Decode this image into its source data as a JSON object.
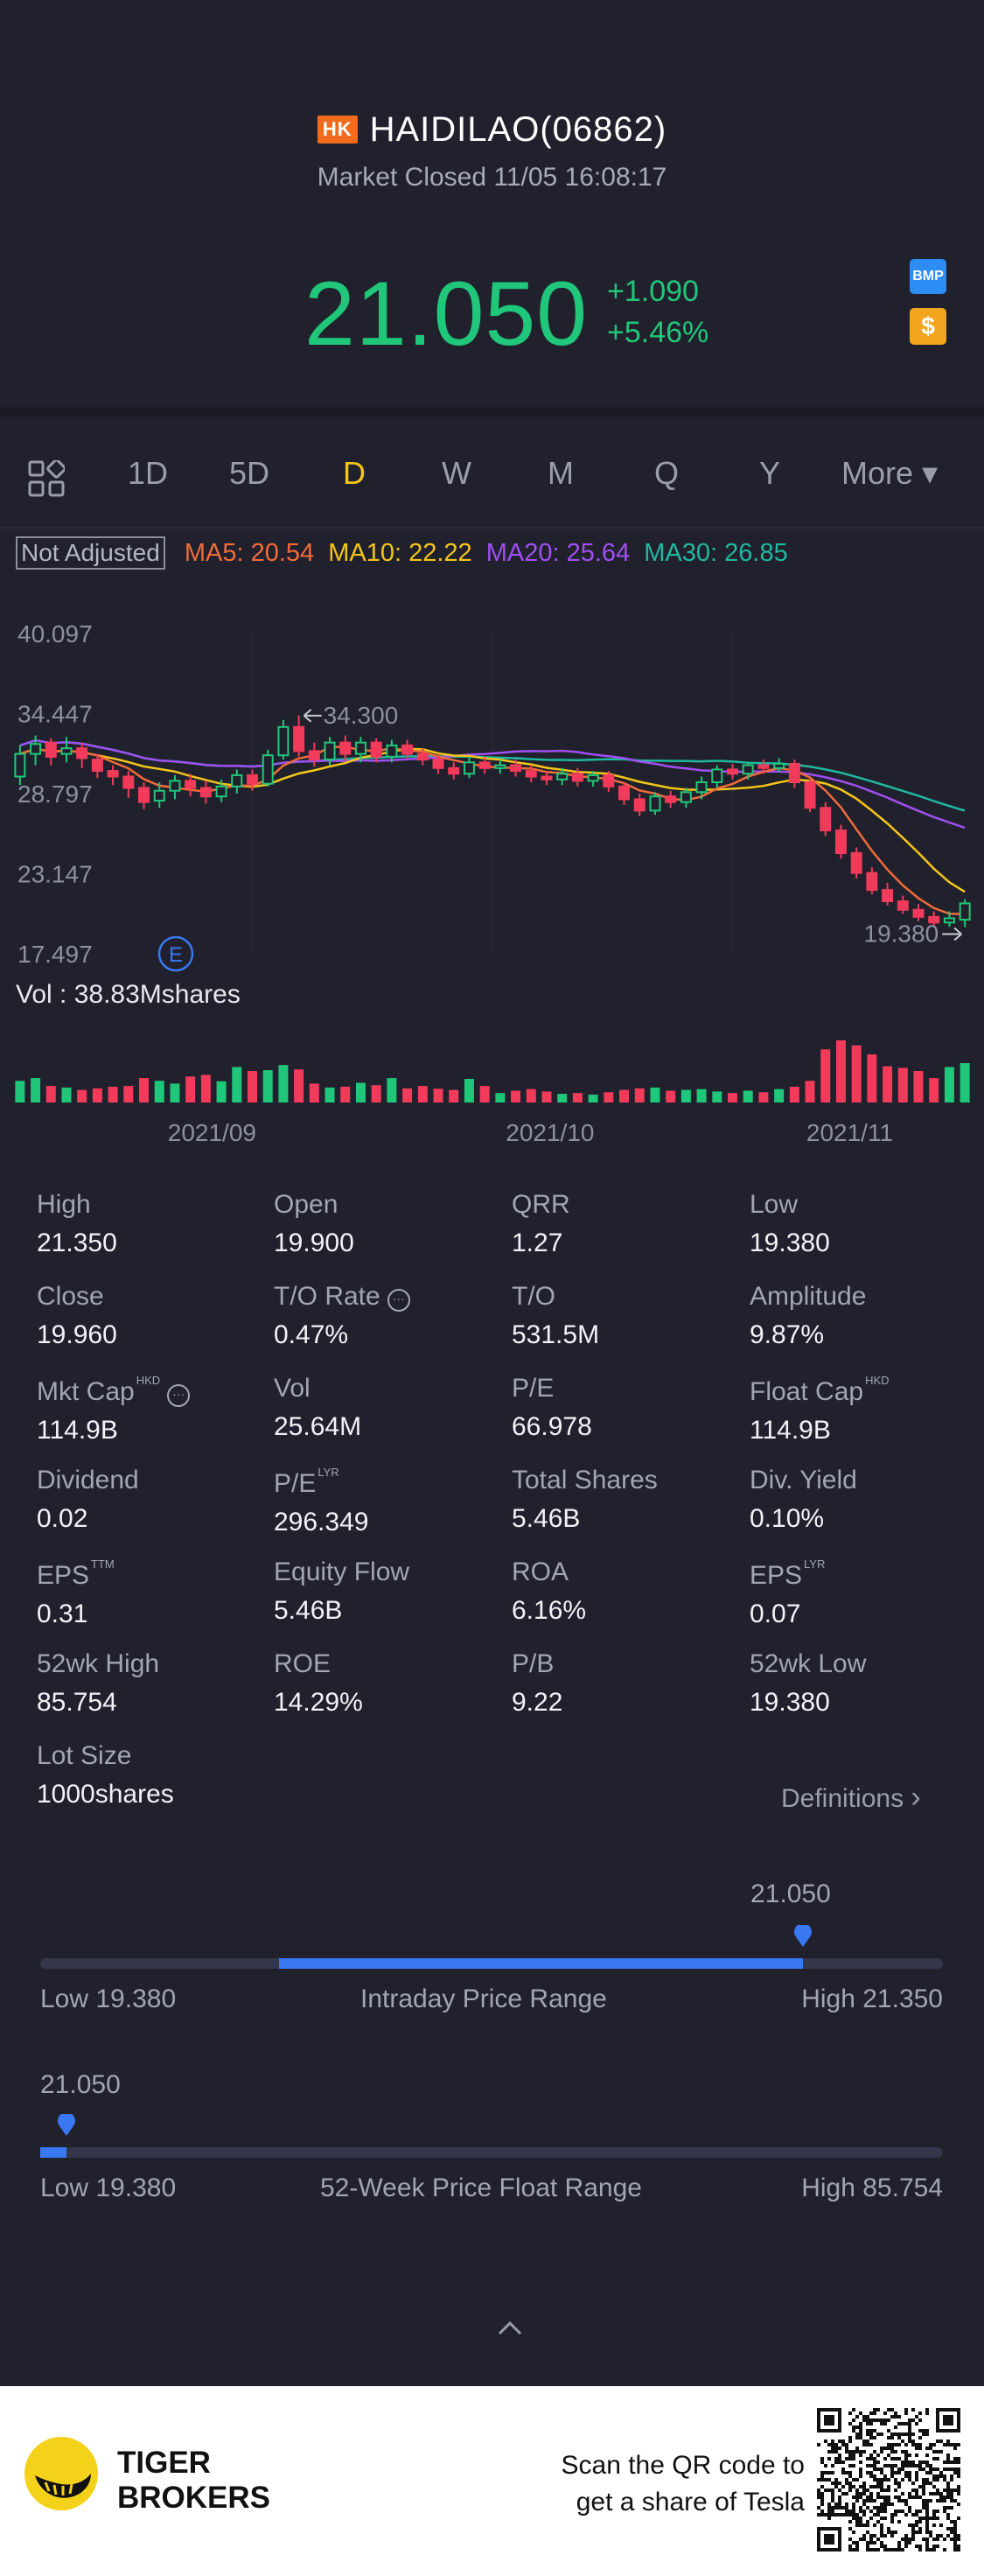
{
  "header": {
    "market_badge": "HK",
    "stock_title": "HAIDILAO(06862)",
    "status": "Market Closed 11/05 16:08:17",
    "price": "21.050",
    "change": "+1.090",
    "change_pct": "+5.46%",
    "bmp_badge": "BMP",
    "dollar_badge": "$",
    "up_color": "#20c77a",
    "down_color": "#f23b5a"
  },
  "tabs": [
    "1D",
    "5D",
    "D",
    "W",
    "M",
    "Q",
    "Y",
    "More ▾"
  ],
  "active_tab": "D",
  "ma_row": {
    "not_adjusted": "Not Adjusted",
    "ma5": "MA5: 20.54",
    "ma10": "MA10: 22.22",
    "ma20": "MA20: 25.64",
    "ma30": "MA30: 26.85",
    "colors": {
      "ma5": "#f26b3a",
      "ma10": "#f5c518",
      "ma20": "#a04ff2",
      "ma30": "#1fb8a0"
    }
  },
  "chart_data": {
    "type": "candlestick",
    "y_ticks": [
      "40.097",
      "34.447",
      "28.797",
      "23.147",
      "17.497"
    ],
    "ylim": [
      17.497,
      40.097
    ],
    "high_marker": "34.300",
    "low_marker": "19.380",
    "event_marker": "E",
    "x_ticks": [
      "2021/09",
      "2021/10",
      "2021/11"
    ],
    "volume_label": "Vol  : 38.83Mshares",
    "candles": [
      {
        "o": 30.0,
        "c": 31.6,
        "h": 32.2,
        "l": 29.4,
        "v": 0.55
      },
      {
        "o": 31.6,
        "c": 32.3,
        "h": 32.9,
        "l": 30.8,
        "v": 0.62
      },
      {
        "o": 32.4,
        "c": 31.4,
        "h": 32.7,
        "l": 30.8,
        "v": 0.42
      },
      {
        "o": 31.6,
        "c": 32.0,
        "h": 32.8,
        "l": 31.0,
        "v": 0.38
      },
      {
        "o": 32.0,
        "c": 31.3,
        "h": 32.4,
        "l": 30.6,
        "v": 0.32
      },
      {
        "o": 31.2,
        "c": 30.4,
        "h": 31.6,
        "l": 29.9,
        "v": 0.36
      },
      {
        "o": 30.4,
        "c": 30.0,
        "h": 30.8,
        "l": 29.4,
        "v": 0.4
      },
      {
        "o": 30.0,
        "c": 29.2,
        "h": 30.4,
        "l": 28.5,
        "v": 0.42
      },
      {
        "o": 29.2,
        "c": 28.2,
        "h": 29.6,
        "l": 27.7,
        "v": 0.62
      },
      {
        "o": 28.3,
        "c": 29.0,
        "h": 29.6,
        "l": 27.8,
        "v": 0.55
      },
      {
        "o": 29.0,
        "c": 29.7,
        "h": 30.1,
        "l": 28.4,
        "v": 0.48
      },
      {
        "o": 29.7,
        "c": 29.2,
        "h": 30.2,
        "l": 28.6,
        "v": 0.66
      },
      {
        "o": 29.2,
        "c": 28.6,
        "h": 29.7,
        "l": 28.1,
        "v": 0.7
      },
      {
        "o": 28.6,
        "c": 29.3,
        "h": 29.8,
        "l": 28.2,
        "v": 0.54
      },
      {
        "o": 29.3,
        "c": 30.1,
        "h": 30.5,
        "l": 28.8,
        "v": 0.9
      },
      {
        "o": 30.1,
        "c": 29.5,
        "h": 30.5,
        "l": 29.0,
        "v": 0.8
      },
      {
        "o": 29.5,
        "c": 31.5,
        "h": 31.9,
        "l": 29.3,
        "v": 0.82
      },
      {
        "o": 31.5,
        "c": 33.5,
        "h": 34.0,
        "l": 31.2,
        "v": 0.95
      },
      {
        "o": 33.5,
        "c": 31.8,
        "h": 34.3,
        "l": 31.4,
        "v": 0.84
      },
      {
        "o": 31.8,
        "c": 31.2,
        "h": 32.4,
        "l": 30.7,
        "v": 0.48
      },
      {
        "o": 31.2,
        "c": 32.4,
        "h": 32.8,
        "l": 30.8,
        "v": 0.38
      },
      {
        "o": 32.4,
        "c": 31.6,
        "h": 32.9,
        "l": 31.1,
        "v": 0.4
      },
      {
        "o": 31.6,
        "c": 32.4,
        "h": 32.8,
        "l": 31.0,
        "v": 0.5
      },
      {
        "o": 32.4,
        "c": 31.4,
        "h": 32.7,
        "l": 31.0,
        "v": 0.44
      },
      {
        "o": 31.4,
        "c": 32.2,
        "h": 32.6,
        "l": 31.0,
        "v": 0.62
      },
      {
        "o": 32.2,
        "c": 31.6,
        "h": 32.6,
        "l": 31.2,
        "v": 0.36
      },
      {
        "o": 31.6,
        "c": 31.2,
        "h": 32.0,
        "l": 30.8,
        "v": 0.42
      },
      {
        "o": 31.2,
        "c": 30.6,
        "h": 31.6,
        "l": 30.2,
        "v": 0.35
      },
      {
        "o": 30.6,
        "c": 30.2,
        "h": 31.0,
        "l": 29.8,
        "v": 0.32
      },
      {
        "o": 30.2,
        "c": 31.0,
        "h": 31.4,
        "l": 29.9,
        "v": 0.6
      },
      {
        "o": 31.0,
        "c": 30.6,
        "h": 31.4,
        "l": 30.2,
        "v": 0.42
      },
      {
        "o": 30.6,
        "c": 30.8,
        "h": 31.2,
        "l": 30.2,
        "v": 0.24
      },
      {
        "o": 30.8,
        "c": 30.4,
        "h": 31.2,
        "l": 30.0,
        "v": 0.3
      },
      {
        "o": 30.4,
        "c": 30.0,
        "h": 30.8,
        "l": 29.6,
        "v": 0.34
      },
      {
        "o": 30.0,
        "c": 29.8,
        "h": 30.4,
        "l": 29.4,
        "v": 0.28
      },
      {
        "o": 29.8,
        "c": 30.2,
        "h": 30.6,
        "l": 29.4,
        "v": 0.22
      },
      {
        "o": 30.2,
        "c": 29.7,
        "h": 30.6,
        "l": 29.3,
        "v": 0.24
      },
      {
        "o": 29.7,
        "c": 30.1,
        "h": 30.4,
        "l": 29.3,
        "v": 0.2
      },
      {
        "o": 30.1,
        "c": 29.3,
        "h": 30.4,
        "l": 28.9,
        "v": 0.26
      },
      {
        "o": 29.3,
        "c": 28.4,
        "h": 29.6,
        "l": 28.0,
        "v": 0.32
      },
      {
        "o": 28.4,
        "c": 27.6,
        "h": 28.8,
        "l": 27.2,
        "v": 0.36
      },
      {
        "o": 27.6,
        "c": 28.6,
        "h": 28.9,
        "l": 27.3,
        "v": 0.38
      },
      {
        "o": 28.6,
        "c": 28.2,
        "h": 29.0,
        "l": 27.8,
        "v": 0.3
      },
      {
        "o": 28.2,
        "c": 28.9,
        "h": 29.2,
        "l": 27.8,
        "v": 0.32
      },
      {
        "o": 28.9,
        "c": 29.6,
        "h": 30.0,
        "l": 28.4,
        "v": 0.34
      },
      {
        "o": 29.6,
        "c": 30.5,
        "h": 30.8,
        "l": 29.2,
        "v": 0.28
      },
      {
        "o": 30.5,
        "c": 30.2,
        "h": 30.9,
        "l": 29.8,
        "v": 0.24
      },
      {
        "o": 30.2,
        "c": 30.8,
        "h": 31.0,
        "l": 29.8,
        "v": 0.3
      },
      {
        "o": 30.8,
        "c": 30.6,
        "h": 31.2,
        "l": 30.2,
        "v": 0.26
      },
      {
        "o": 30.6,
        "c": 30.9,
        "h": 31.3,
        "l": 30.3,
        "v": 0.34
      },
      {
        "o": 30.9,
        "c": 29.6,
        "h": 31.2,
        "l": 29.2,
        "v": 0.4
      },
      {
        "o": 29.6,
        "c": 27.8,
        "h": 29.9,
        "l": 27.5,
        "v": 0.55
      },
      {
        "o": 27.8,
        "c": 26.2,
        "h": 28.2,
        "l": 25.8,
        "v": 1.35
      },
      {
        "o": 26.2,
        "c": 24.6,
        "h": 26.6,
        "l": 24.2,
        "v": 1.58
      },
      {
        "o": 24.6,
        "c": 23.2,
        "h": 25.0,
        "l": 22.8,
        "v": 1.45
      },
      {
        "o": 23.2,
        "c": 22.0,
        "h": 23.6,
        "l": 21.7,
        "v": 1.22
      },
      {
        "o": 22.0,
        "c": 21.2,
        "h": 22.5,
        "l": 20.9,
        "v": 0.92
      },
      {
        "o": 21.2,
        "c": 20.6,
        "h": 21.6,
        "l": 20.3,
        "v": 0.88
      },
      {
        "o": 20.6,
        "c": 20.1,
        "h": 21.0,
        "l": 19.8,
        "v": 0.8
      },
      {
        "o": 20.1,
        "c": 19.7,
        "h": 20.5,
        "l": 19.4,
        "v": 0.62
      },
      {
        "o": 19.7,
        "c": 20.0,
        "h": 20.5,
        "l": 19.4,
        "v": 0.9
      },
      {
        "o": 19.9,
        "c": 21.05,
        "h": 21.35,
        "l": 19.38,
        "v": 1.0
      }
    ]
  },
  "stats": [
    {
      "label": "High",
      "value": "21.350"
    },
    {
      "label": "Open",
      "value": "19.900"
    },
    {
      "label": "QRR",
      "value": "1.27"
    },
    {
      "label": "Low",
      "value": "19.380"
    },
    {
      "label": "Close",
      "value": "19.960"
    },
    {
      "label": "T/O Rate",
      "value": "0.47%",
      "info": "···"
    },
    {
      "label": "T/O",
      "value": "531.5M"
    },
    {
      "label": "Amplitude",
      "value": "9.87%"
    },
    {
      "label": "Mkt Cap",
      "value": "114.9B",
      "sup": "HKD",
      "info": "···"
    },
    {
      "label": "Vol",
      "value": "25.64M"
    },
    {
      "label": "P/E",
      "value": "66.978"
    },
    {
      "label": "Float Cap",
      "value": "114.9B",
      "sup": "HKD"
    },
    {
      "label": "Dividend",
      "value": "0.02"
    },
    {
      "label": "P/E",
      "value": "296.349",
      "sup": "LYR"
    },
    {
      "label": "Total Shares",
      "value": "5.46B"
    },
    {
      "label": "Div. Yield",
      "value": "0.10%"
    },
    {
      "label": "EPS",
      "value": "0.31",
      "sup": "TTM"
    },
    {
      "label": "Equity Flow",
      "value": "5.46B"
    },
    {
      "label": "ROA",
      "value": "6.16%"
    },
    {
      "label": "EPS",
      "value": "0.07",
      "sup": "LYR"
    },
    {
      "label": "52wk High",
      "value": "85.754"
    },
    {
      "label": "ROE",
      "value": "14.29%"
    },
    {
      "label": "P/B",
      "value": "9.22"
    },
    {
      "label": "52wk Low",
      "value": "19.380"
    },
    {
      "label": "Lot Size",
      "value": "1000shares"
    }
  ],
  "definitions_link": "Definitions",
  "intraday_range": {
    "current": "21.050",
    "low": "Low 19.380",
    "title": "Intraday Price Range",
    "high": "High 21.350",
    "fill_start": 0.265,
    "fill_end": 0.845
  },
  "week52_range": {
    "current": "21.050",
    "low": "Low 19.380",
    "title": "52-Week Price Float Range",
    "high": "High 85.754",
    "fill_start": 0.0,
    "fill_end": 0.025
  },
  "banner": {
    "brand_line1": "TIGER",
    "brand_line2": "BROKERS",
    "scan_line1": "Scan the QR code to",
    "scan_line2": "get a share of Tesla"
  }
}
